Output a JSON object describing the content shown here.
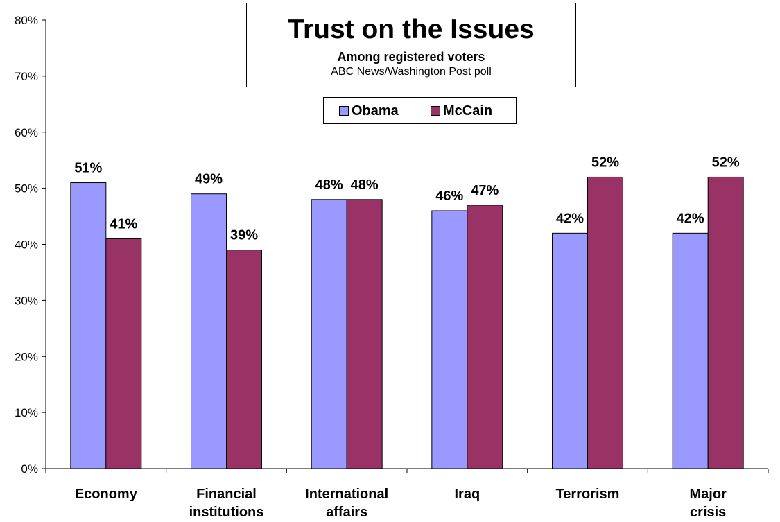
{
  "chart_data": {
    "type": "bar",
    "title": "Trust on the Issues",
    "subtitle": "Among registered voters",
    "source": "ABC News/Washington Post poll",
    "categories": [
      "Economy",
      "Financial institutions",
      "International affairs",
      "Iraq",
      "Terrorism",
      "Major crisis"
    ],
    "category_lines": [
      [
        "Economy"
      ],
      [
        "Financial",
        "institutions"
      ],
      [
        "International",
        "affairs"
      ],
      [
        "Iraq"
      ],
      [
        "Terrorism"
      ],
      [
        "Major",
        "crisis"
      ]
    ],
    "series": [
      {
        "name": "Obama",
        "values": [
          51,
          49,
          48,
          46,
          42,
          42
        ],
        "color": "#9999ff"
      },
      {
        "name": "McCain",
        "values": [
          41,
          39,
          48,
          47,
          52,
          52
        ],
        "color": "#993366"
      }
    ],
    "value_unit": "%",
    "ylim": [
      0,
      80
    ],
    "yticks": [
      "0%",
      "10%",
      "20%",
      "30%",
      "40%",
      "50%",
      "60%",
      "70%",
      "80%"
    ],
    "grid": false,
    "legend_position": "top-center",
    "xlabel": "",
    "ylabel": ""
  }
}
